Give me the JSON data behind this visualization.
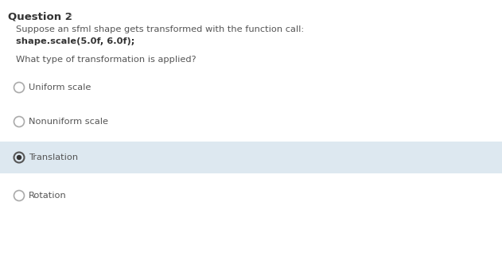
{
  "title": "Question 2",
  "bg_color": "#ffffff",
  "text_color": "#555555",
  "bold_color": "#333333",
  "question_line1": "Suppose an sfml shape gets transformed with the function call:",
  "question_line2": "shape.scale(5.0f, 6.0f);",
  "question_line3": "What type of transformation is applied?",
  "options": [
    "Uniform scale",
    "Nonuniform scale",
    "Translation",
    "Rotation"
  ],
  "selected_index": 2,
  "selected_bg": "#dde8f0",
  "option_text_color": "#555555",
  "title_fontsize": 9.5,
  "body_fontsize": 8.2,
  "option_fontsize": 8.2,
  "circle_color_unselected": "#aaaaaa",
  "circle_color_selected_outer": "#555555",
  "circle_color_selected_inner": "#333333"
}
